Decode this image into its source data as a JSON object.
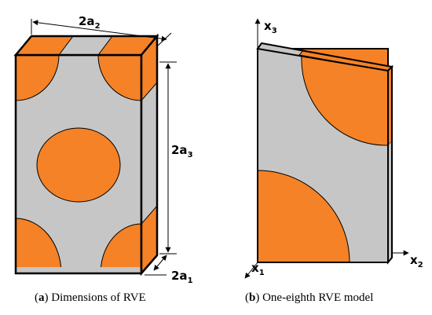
{
  "colors": {
    "matrix": "#c6c6c6",
    "inclusion": "#f58226",
    "edge": "#000000"
  },
  "panel_a": {
    "dim_width": {
      "main": "2a",
      "sub": "2"
    },
    "dim_height": {
      "main": "2a",
      "sub": "3"
    },
    "dim_depth": {
      "main": "2a",
      "sub": "1"
    },
    "caption_letter": "a",
    "caption_text": "Dimensions of RVE"
  },
  "panel_b": {
    "axis_x3": {
      "main": "x",
      "sub": "3"
    },
    "axis_x2": {
      "main": "x",
      "sub": "2"
    },
    "axis_x1": {
      "main": "x",
      "sub": "1"
    },
    "caption_letter": "b",
    "caption_text": "One-eighth RVE model"
  }
}
